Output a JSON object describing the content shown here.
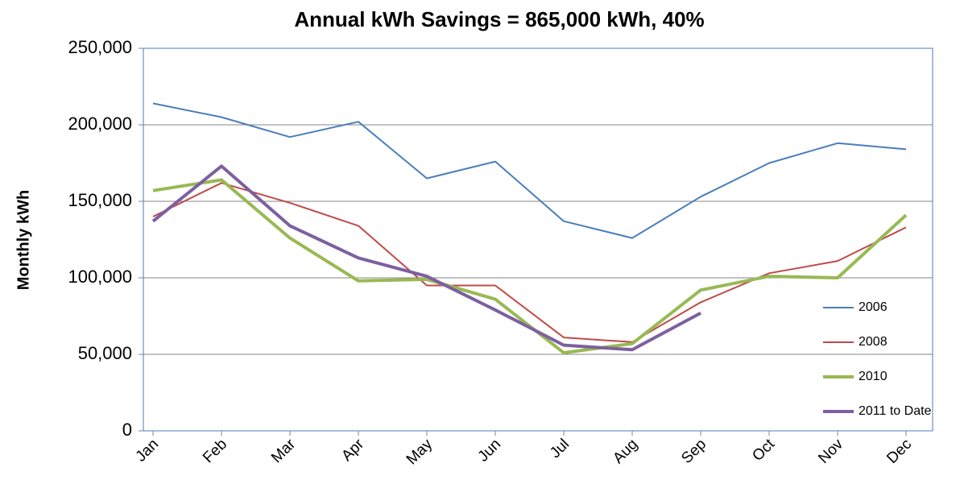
{
  "chart_data": {
    "type": "line",
    "title": "Annual kWh Savings = 865,000 kWh, 40%",
    "y_label": "Monthly kWh",
    "categories": [
      "Jan",
      "Feb",
      "Mar",
      "Apr",
      "May",
      "Jun",
      "Jul",
      "Aug",
      "Sep",
      "Oct",
      "Nov",
      "Dec"
    ],
    "series": [
      {
        "name": "2006",
        "color": "#4a7ebb",
        "width": 2,
        "values": [
          214000,
          205000,
          192000,
          202000,
          165000,
          176000,
          137000,
          126000,
          153000,
          175000,
          188000,
          184000
        ]
      },
      {
        "name": "2008",
        "color": "#be4b48",
        "width": 2,
        "values": [
          140000,
          162000,
          149000,
          134000,
          95000,
          95000,
          61000,
          58000,
          84000,
          103000,
          111000,
          133000
        ]
      },
      {
        "name": "2010",
        "color": "#98b954",
        "width": 4,
        "values": [
          157000,
          164000,
          126000,
          98000,
          99000,
          86000,
          51000,
          57000,
          92000,
          101000,
          100000,
          141000
        ]
      },
      {
        "name": "2011 to Date",
        "color": "#7d60a0",
        "width": 4,
        "values": [
          137000,
          173000,
          134000,
          113000,
          101000,
          79000,
          56000,
          53000,
          77000,
          null,
          null,
          null
        ]
      }
    ],
    "ylim": [
      0,
      250000
    ],
    "yticks": [
      0,
      {
        "value": 50000,
        "label": "50,000"
      },
      {
        "value": 100000,
        "label": "100,000"
      },
      {
        "value": 150000,
        "label": "150,000"
      },
      {
        "value": 200000,
        "label": "200,000"
      },
      {
        "value": 250000,
        "label": "250,000"
      }
    ],
    "grid": true,
    "legend": "right"
  }
}
